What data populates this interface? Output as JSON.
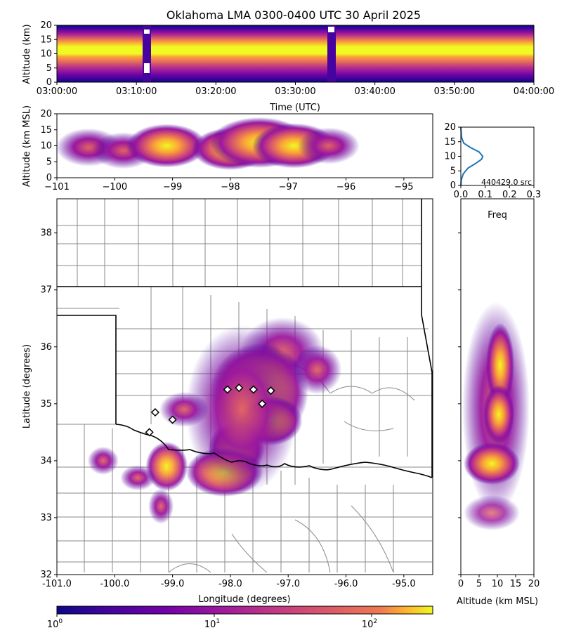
{
  "title": "Oklahoma LMA 0300-0400 UTC 30 April 2025",
  "colors": {
    "low": "#0d0887",
    "mid": "#cc4778",
    "high": "#f0f921"
  },
  "chart_data": [
    {
      "id": "time-height",
      "type": "heatmap",
      "xlabel": "Time (UTC)",
      "ylabel": "Altitude (km)",
      "xticks": [
        "03:00:00",
        "03:10:00",
        "03:20:00",
        "03:30:00",
        "03:40:00",
        "03:50:00",
        "04:00:00"
      ],
      "yticks": [
        0,
        5,
        10,
        15,
        20
      ],
      "ylim": [
        0,
        20
      ],
      "gaps_minutes": [
        11.2,
        34.8
      ],
      "core_altitude_km": [
        7,
        14
      ]
    },
    {
      "id": "lon-alt",
      "type": "heatmap",
      "ylabel": "Altitude (km MSL)",
      "xlim": [
        -101,
        -94.5
      ],
      "ylim": [
        0,
        20
      ],
      "xticks": [
        "−101",
        "−100",
        "−99",
        "−98",
        "−97",
        "−96",
        "−95"
      ],
      "yticks": [
        0,
        5,
        10,
        15,
        20
      ],
      "cores": [
        {
          "lon": -100.45,
          "alt": 9.5,
          "intensity": 0.55
        },
        {
          "lon": -99.85,
          "alt": 8.5,
          "intensity": 0.5
        },
        {
          "lon": -99.1,
          "alt": 10,
          "intensity": 0.75
        },
        {
          "lon": -98.0,
          "alt": 9,
          "intensity": 0.7
        },
        {
          "lon": -97.5,
          "alt": 11,
          "intensity": 1.0
        },
        {
          "lon": -96.9,
          "alt": 10,
          "intensity": 0.8
        },
        {
          "lon": -96.3,
          "alt": 10,
          "intensity": 0.5
        }
      ]
    },
    {
      "id": "altitude-histogram",
      "type": "line",
      "xlabel": "Freq",
      "xticks": [
        "0.0",
        "0.1",
        "0.2",
        "0.3"
      ],
      "xlim": [
        0,
        0.3
      ],
      "yticks": [
        0,
        5,
        10,
        15,
        20
      ],
      "ylim": [
        0,
        20
      ],
      "annotation": "440429.0 src",
      "x": [
        0,
        0.002,
        0.01,
        0.03,
        0.06,
        0.085,
        0.09,
        0.075,
        0.04,
        0.012,
        0.003,
        0
      ],
      "y": [
        0,
        2,
        4,
        6,
        7.5,
        9,
        10,
        11.5,
        13,
        14.5,
        16.5,
        20
      ]
    },
    {
      "id": "plan-view",
      "type": "heatmap",
      "xlabel": "Longitude (degrees)",
      "ylabel": "Latitude (degrees)",
      "xlim": [
        -101,
        -94.5
      ],
      "ylim": [
        32,
        38.6
      ],
      "xticks": [
        "-101.0",
        "-100.0",
        "-99.0",
        "-98.0",
        "-97.0",
        "-96.0",
        "-95.0"
      ],
      "yticks": [
        "32",
        "33",
        "34",
        "35",
        "36",
        "37",
        "38"
      ],
      "stations": [
        {
          "lon": -98.05,
          "lat": 35.25
        },
        {
          "lon": -97.85,
          "lat": 35.28
        },
        {
          "lon": -97.6,
          "lat": 35.25
        },
        {
          "lon": -97.3,
          "lat": 35.23
        },
        {
          "lon": -97.45,
          "lat": 35.0
        },
        {
          "lon": -99.3,
          "lat": 34.85
        },
        {
          "lon": -99.0,
          "lat": 34.72
        },
        {
          "lon": -99.4,
          "lat": 34.5
        }
      ]
    },
    {
      "id": "alt-lat",
      "type": "heatmap",
      "xlabel": "Altitude (km MSL)",
      "xticks": [
        "0",
        "5",
        "10",
        "15",
        "20"
      ],
      "xlim": [
        0,
        20
      ],
      "ylim": [
        32,
        38.6
      ]
    }
  ],
  "colorbar": {
    "scale": "log",
    "ticks": [
      {
        "base": "10",
        "exp": "0"
      },
      {
        "base": "10",
        "exp": "1"
      },
      {
        "base": "10",
        "exp": "2"
      }
    ]
  }
}
